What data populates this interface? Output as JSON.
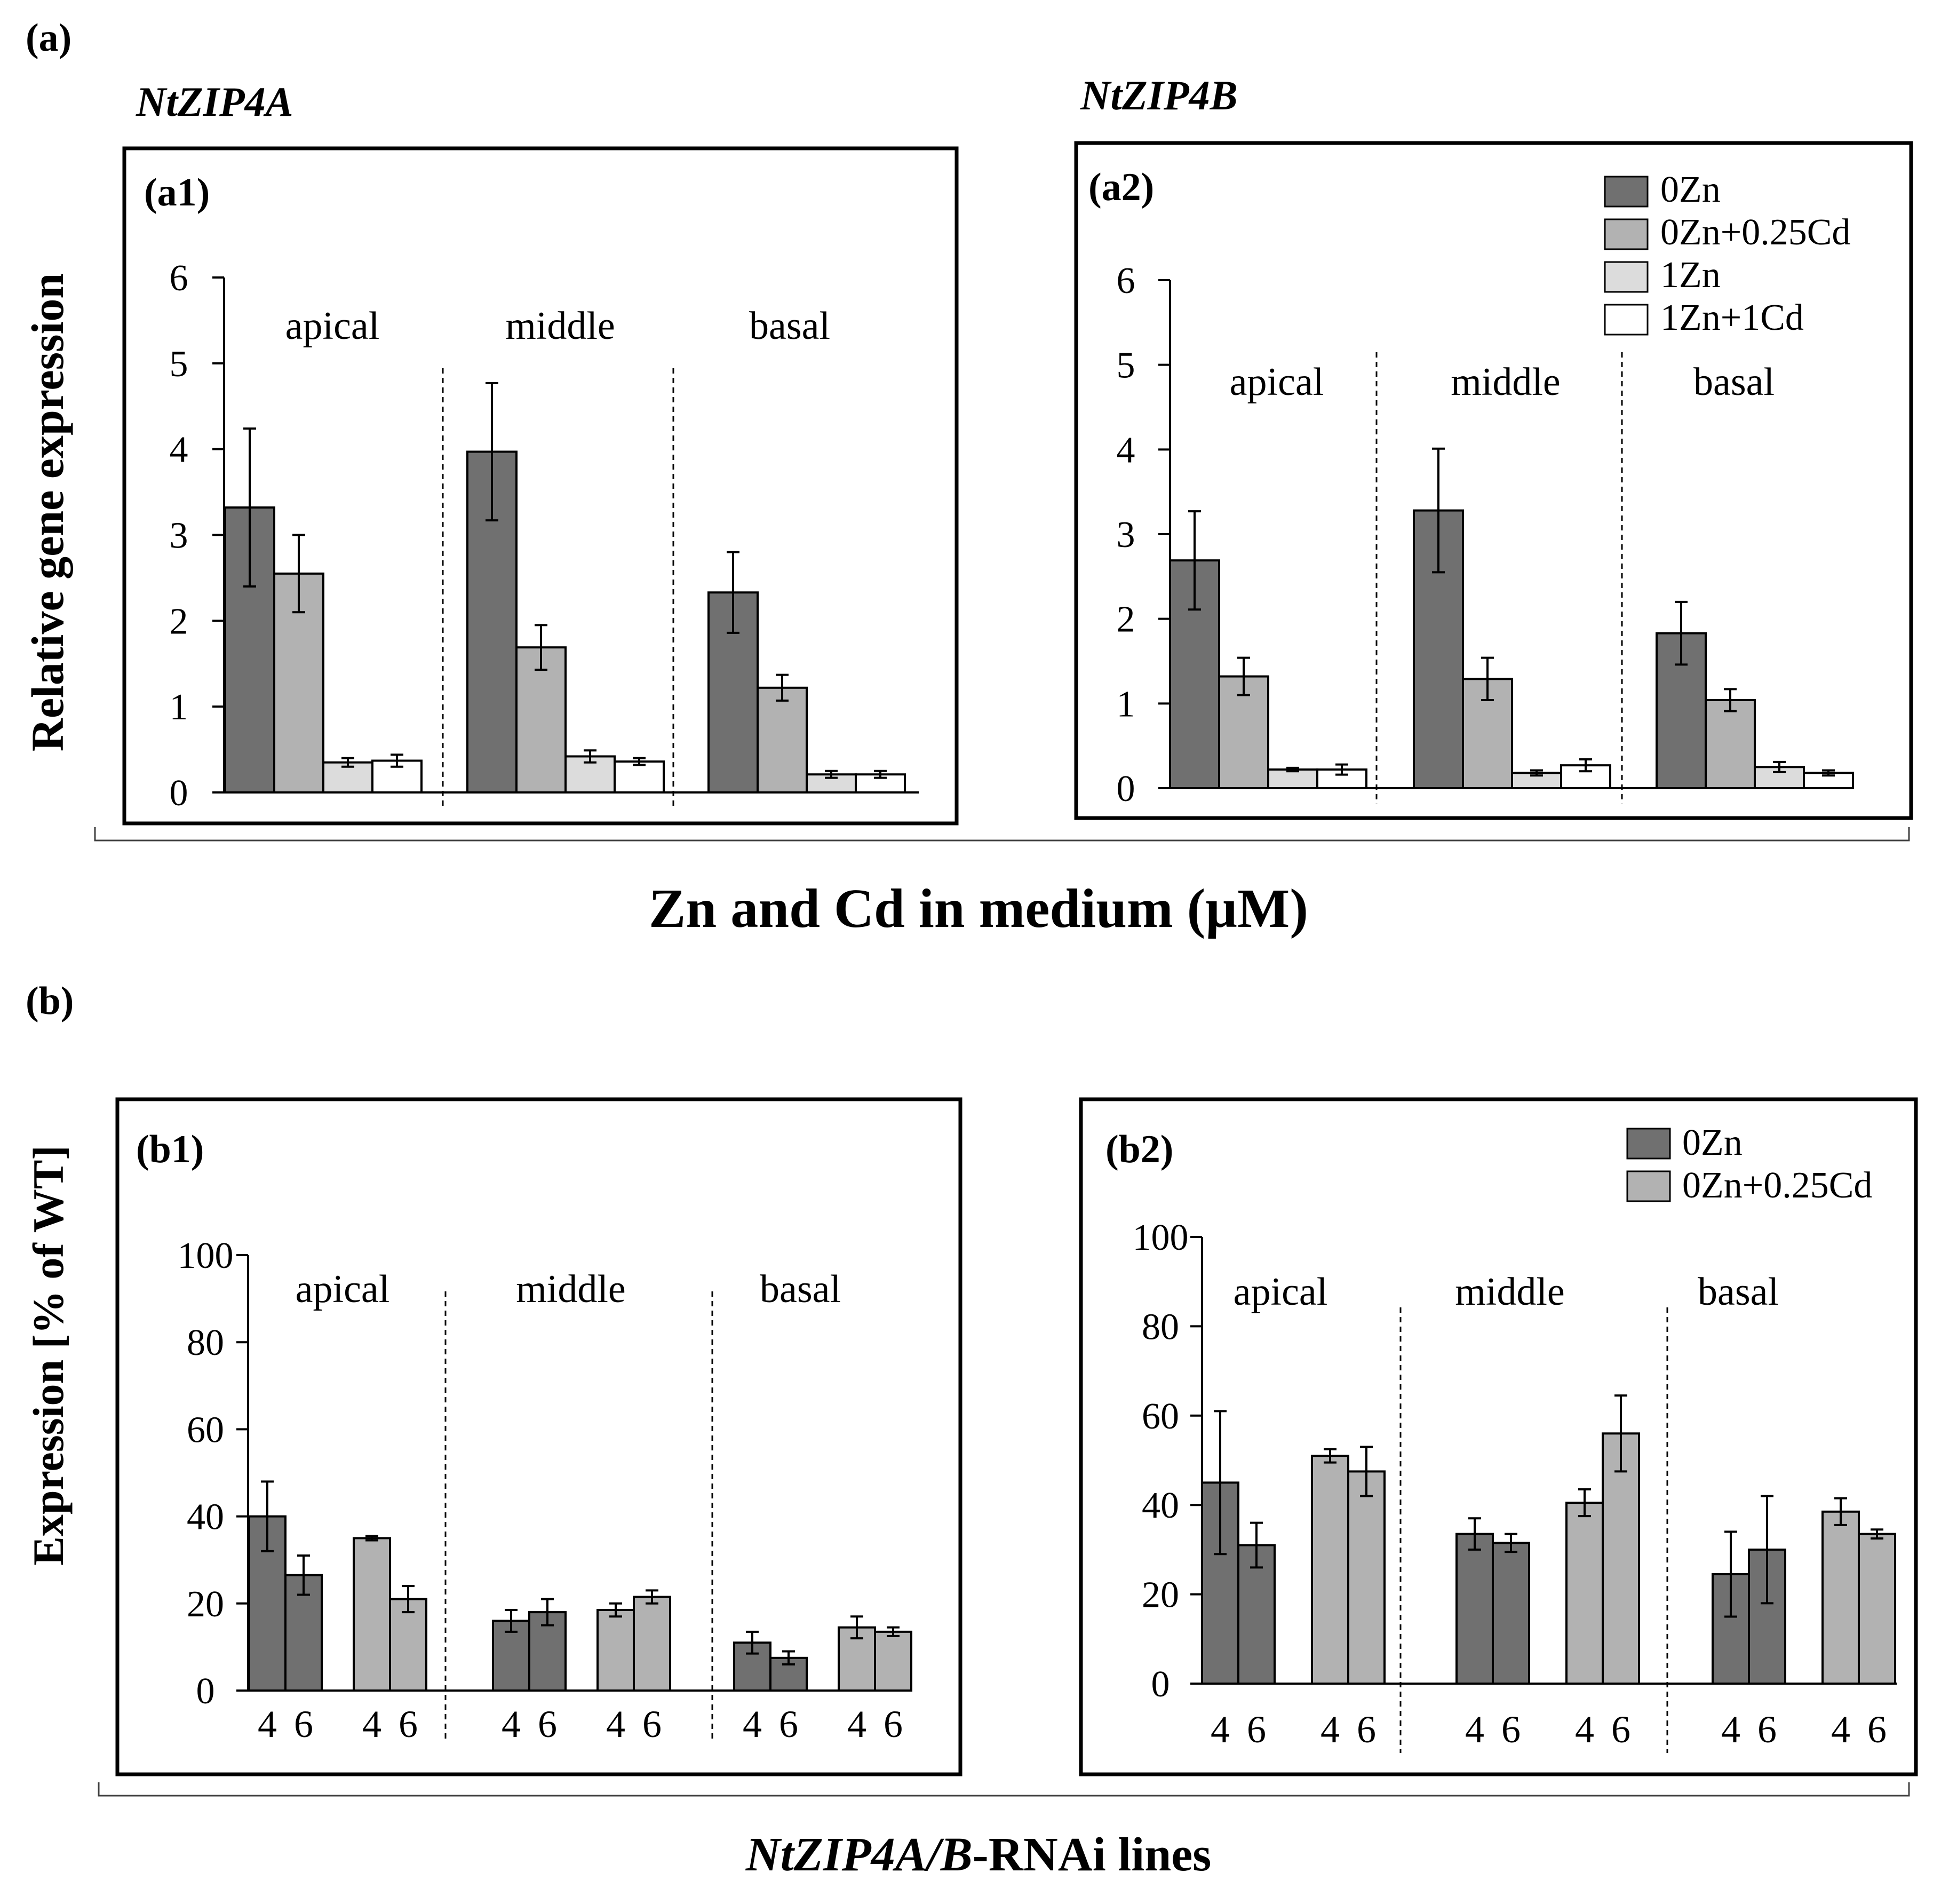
{
  "figure": {
    "panel_a_label": "(a)",
    "panel_b_label": "(b)",
    "gene_a1": "NtZIP4A",
    "gene_a2": "NtZIP4B",
    "xlabel_a": "Zn and Cd in medium (µM)",
    "xlabel_b_italic": "NtZIP4A/B",
    "xlabel_b_rest": "-RNAi lines",
    "ylabel_a": "Relative gene expression",
    "ylabel_b": "Expression [% of WT]"
  },
  "colors": {
    "0Zn": "#707070",
    "0Zn+0.25Cd": "#b2b2b2",
    "1Zn": "#dcdcdc",
    "1Zn+1Cd": "#ffffff"
  },
  "chart_data": [
    {
      "id": "a1",
      "type": "bar",
      "panel_label": "(a1)",
      "ylim": [
        0,
        6
      ],
      "yticks": [
        0,
        1,
        2,
        3,
        4,
        5,
        6
      ],
      "groups": [
        "apical",
        "middle",
        "basal"
      ],
      "series": [
        {
          "name": "0Zn",
          "values": [
            3.32,
            3.97,
            2.33
          ],
          "errors": [
            0.92,
            0.8,
            0.47
          ]
        },
        {
          "name": "0Zn+0.25Cd",
          "values": [
            2.55,
            1.69,
            1.22
          ],
          "errors": [
            0.45,
            0.26,
            0.15
          ]
        },
        {
          "name": "1Zn",
          "values": [
            0.35,
            0.42,
            0.21
          ],
          "errors": [
            0.05,
            0.07,
            0.04
          ]
        },
        {
          "name": "1Zn+1Cd",
          "values": [
            0.37,
            0.36,
            0.21
          ],
          "errors": [
            0.07,
            0.04,
            0.04
          ]
        }
      ]
    },
    {
      "id": "a2",
      "type": "bar",
      "panel_label": "(a2)",
      "ylim": [
        0,
        6
      ],
      "yticks": [
        0,
        1,
        2,
        3,
        4,
        5,
        6
      ],
      "groups": [
        "apical",
        "middle",
        "basal"
      ],
      "legend": [
        "0Zn",
        "0Zn+0.25Cd",
        "1Zn",
        "1Zn+1Cd"
      ],
      "series": [
        {
          "name": "0Zn",
          "values": [
            2.69,
            3.28,
            1.83
          ],
          "errors": [
            0.58,
            0.73,
            0.37
          ]
        },
        {
          "name": "0Zn+0.25Cd",
          "values": [
            1.32,
            1.29,
            1.04
          ],
          "errors": [
            0.22,
            0.25,
            0.13
          ]
        },
        {
          "name": "1Zn",
          "values": [
            0.22,
            0.18,
            0.25
          ],
          "errors": [
            0.02,
            0.03,
            0.06
          ]
        },
        {
          "name": "1Zn+1Cd",
          "values": [
            0.22,
            0.27,
            0.18
          ],
          "errors": [
            0.06,
            0.07,
            0.03
          ]
        }
      ]
    },
    {
      "id": "b1",
      "type": "bar",
      "panel_label": "(b1)",
      "ylim": [
        0,
        100
      ],
      "yticks": [
        0,
        20,
        40,
        60,
        80,
        100
      ],
      "groups": [
        "apical",
        "middle",
        "basal"
      ],
      "lines": [
        "4",
        "6"
      ],
      "series": [
        {
          "name": "0Zn",
          "values": [
            [
              40,
              26.5
            ],
            [
              16,
              18
            ],
            [
              11,
              7.5
            ]
          ],
          "errors": [
            [
              8,
              4.5
            ],
            [
              2.5,
              3
            ],
            [
              2.5,
              1.5
            ]
          ]
        },
        {
          "name": "0Zn+0.25Cd",
          "values": [
            [
              35,
              21
            ],
            [
              18.5,
              21.5
            ],
            [
              14.5,
              13.5
            ]
          ],
          "errors": [
            [
              0.5,
              3
            ],
            [
              1.5,
              1.5
            ],
            [
              2.5,
              1
            ]
          ]
        }
      ]
    },
    {
      "id": "b2",
      "type": "bar",
      "panel_label": "(b2)",
      "ylim": [
        0,
        100
      ],
      "yticks": [
        0,
        20,
        40,
        60,
        80,
        100
      ],
      "groups": [
        "apical",
        "middle",
        "basal"
      ],
      "lines": [
        "4",
        "6"
      ],
      "legend": [
        "0Zn",
        "0Zn+0.25Cd"
      ],
      "series": [
        {
          "name": "0Zn",
          "values": [
            [
              45,
              31
            ],
            [
              33.5,
              31.5
            ],
            [
              24.5,
              30
            ]
          ],
          "errors": [
            [
              16,
              5
            ],
            [
              3.5,
              2
            ],
            [
              9.5,
              12
            ]
          ]
        },
        {
          "name": "0Zn+0.25Cd",
          "values": [
            [
              51,
              47.5
            ],
            [
              40.5,
              56
            ],
            [
              38.5,
              33.5
            ]
          ],
          "errors": [
            [
              1.5,
              5.5
            ],
            [
              3,
              8.5
            ],
            [
              3,
              1
            ]
          ]
        }
      ]
    }
  ]
}
